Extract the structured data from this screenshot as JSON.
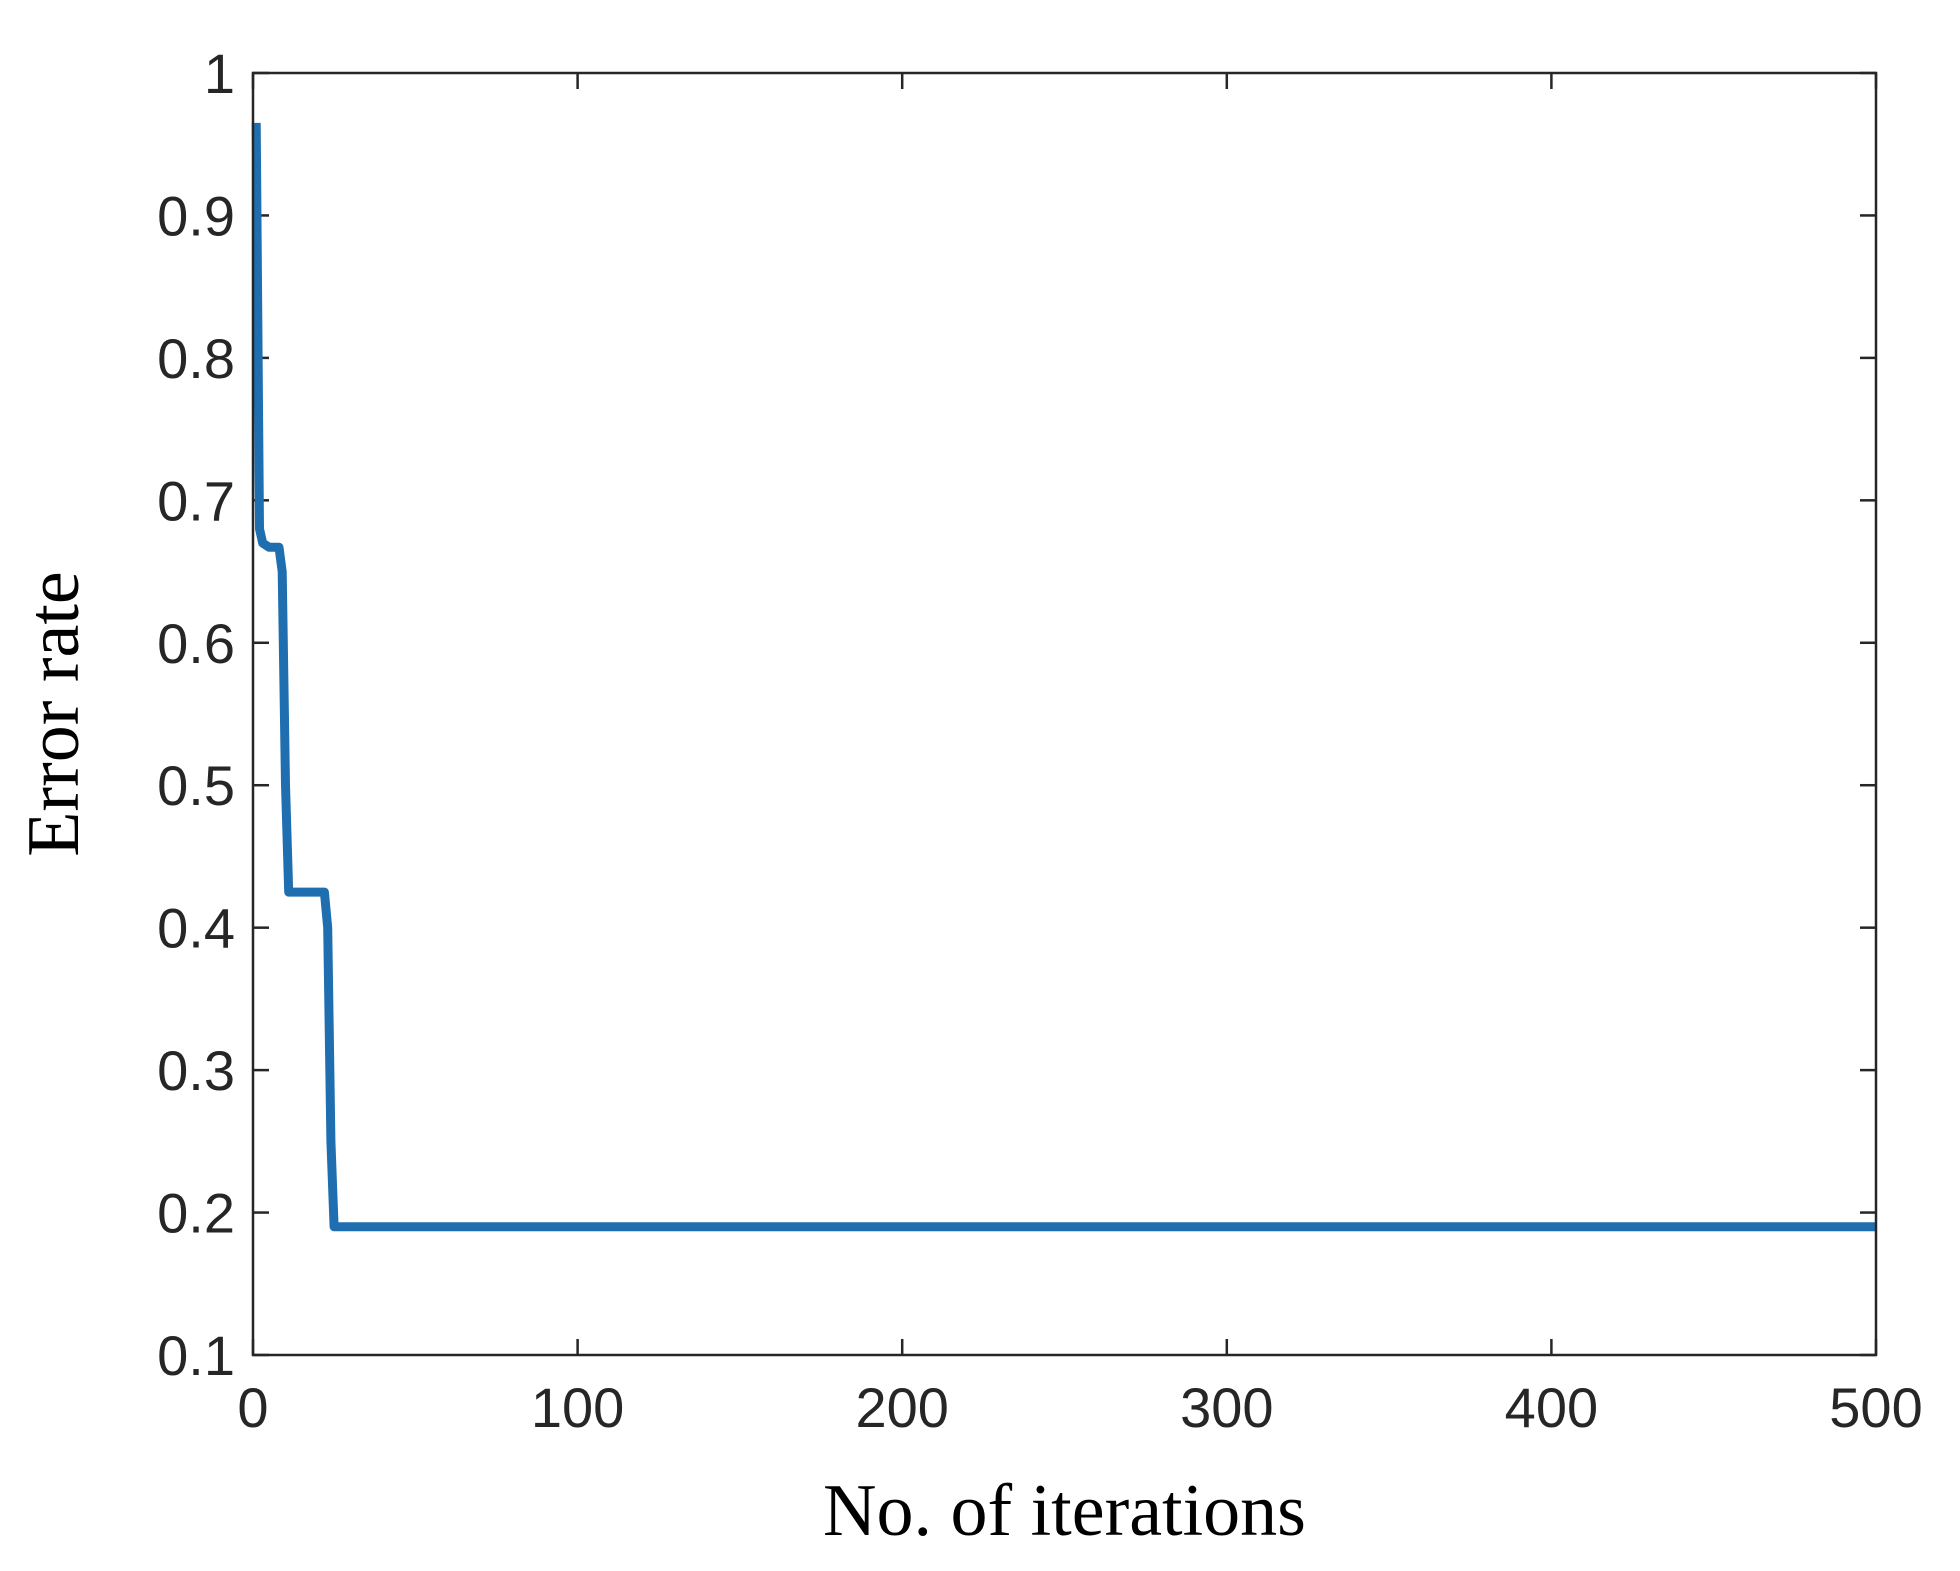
{
  "chart_data": {
    "type": "line",
    "title": "",
    "xlabel": "No. of iterations",
    "ylabel": "Error rate",
    "xlim": [
      0,
      500
    ],
    "ylim": [
      0.1,
      1
    ],
    "x_ticks": [
      0,
      100,
      200,
      300,
      400,
      500
    ],
    "x_tick_labels": [
      "0",
      "100",
      "200",
      "300",
      "400",
      "500"
    ],
    "y_ticks": [
      0.1,
      0.2,
      0.3,
      0.4,
      0.5,
      0.6,
      0.7,
      0.8,
      0.9,
      1
    ],
    "y_tick_labels": [
      "0.1",
      "0.2",
      "0.3",
      "0.4",
      "0.5",
      "0.6",
      "0.7",
      "0.8",
      "0.9",
      "1"
    ],
    "grid": false,
    "legend": "none",
    "series": [
      {
        "color": "#1f6fb0",
        "x": [
          1,
          2,
          3,
          5,
          8,
          9,
          10,
          11,
          22,
          23,
          24,
          25,
          500
        ],
        "y": [
          0.965,
          0.68,
          0.67,
          0.667,
          0.667,
          0.65,
          0.5,
          0.425,
          0.425,
          0.4,
          0.25,
          0.19,
          0.19
        ]
      }
    ]
  }
}
